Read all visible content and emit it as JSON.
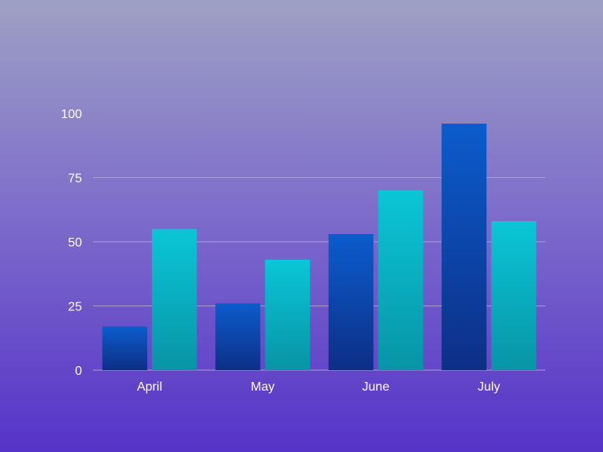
{
  "chart_data": {
    "type": "bar",
    "categories": [
      "April",
      "May",
      "June",
      "July"
    ],
    "series": [
      {
        "values": [
          17,
          26,
          53,
          96
        ]
      },
      {
        "values": [
          55,
          43,
          70,
          58
        ]
      }
    ],
    "title": "",
    "xlabel": "",
    "ylabel": "",
    "ylim": [
      0,
      100
    ],
    "yticks": [
      "0",
      "25",
      "50",
      "75",
      "100"
    ],
    "grid": true,
    "colors": {
      "series_1_top": "#0b5ccc",
      "series_1_bottom": "#0d2f86",
      "series_2_top": "#0ac6d6",
      "series_2_bottom": "#0894a6",
      "gridline": "#a79dd4",
      "text": "#ffffff"
    }
  }
}
